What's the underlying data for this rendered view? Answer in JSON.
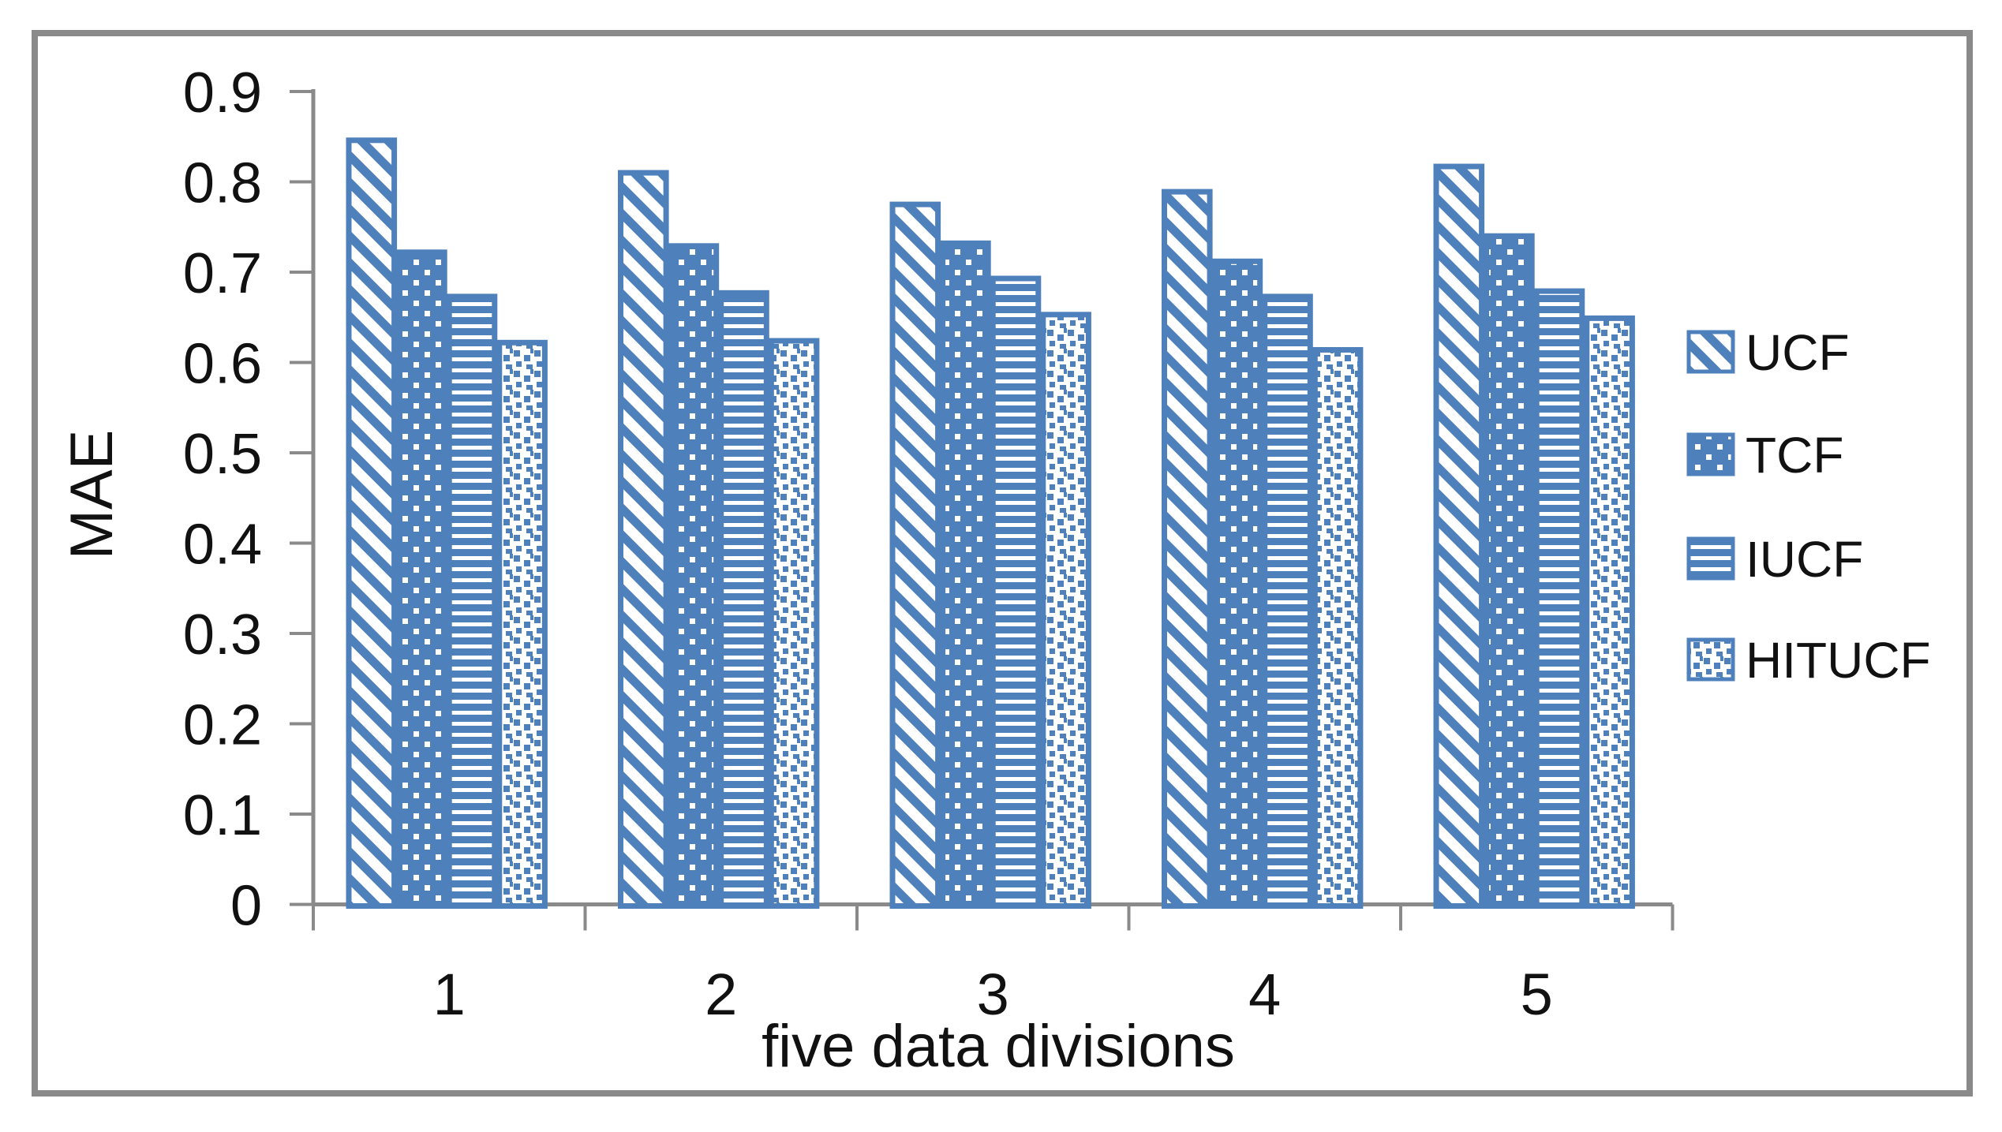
{
  "figure": {
    "border_color": "#8A8A8A",
    "background": "#FFFFFF"
  },
  "chart_data": {
    "type": "bar",
    "title": "",
    "xlabel": "five data divisions",
    "ylabel": "MAE",
    "categories": [
      "1",
      "2",
      "3",
      "4",
      "5"
    ],
    "series": [
      {
        "name": "UCF",
        "pattern": "diagonal-stripes",
        "values": [
          0.846,
          0.81,
          0.775,
          0.789,
          0.817
        ]
      },
      {
        "name": "TCF",
        "pattern": "white-dots",
        "values": [
          0.722,
          0.729,
          0.732,
          0.712,
          0.74
        ]
      },
      {
        "name": "IUCF",
        "pattern": "horizontal-lines",
        "values": [
          0.673,
          0.677,
          0.693,
          0.673,
          0.679
        ]
      },
      {
        "name": "HITUCF",
        "pattern": "speckle",
        "values": [
          0.622,
          0.624,
          0.653,
          0.614,
          0.649
        ]
      }
    ],
    "ylim": [
      0,
      0.9
    ],
    "ytick_step": 0.1,
    "ytick_labels": [
      "0",
      "0.1",
      "0.2",
      "0.3",
      "0.4",
      "0.5",
      "0.6",
      "0.7",
      "0.8",
      "0.9"
    ],
    "grid": false,
    "legend_position": "right",
    "colors": {
      "bar_blue": "#4E80BC",
      "axis_gray": "#8A8A8A",
      "text": "#111111"
    }
  }
}
